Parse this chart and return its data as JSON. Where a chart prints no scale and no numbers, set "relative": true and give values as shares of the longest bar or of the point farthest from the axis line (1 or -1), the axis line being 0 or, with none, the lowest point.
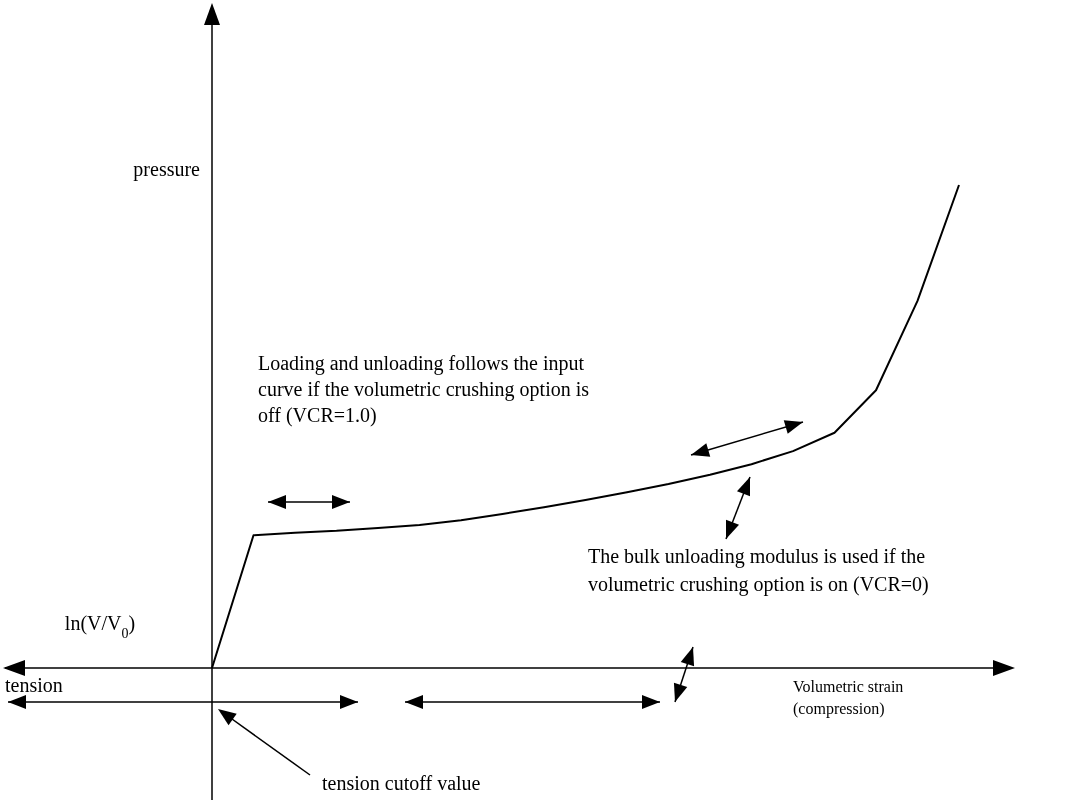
{
  "chart_data": {
    "type": "line",
    "relative": true,
    "color": "#000000",
    "categories": [
      null,
      null,
      null,
      null,
      null,
      null,
      null,
      null,
      null,
      null,
      null,
      null,
      null,
      null,
      null,
      null,
      null,
      null,
      null
    ],
    "values": [
      0,
      0.275,
      0.28,
      0.284,
      0.29,
      0.296,
      0.306,
      0.319,
      0.333,
      0.348,
      0.364,
      0.381,
      0.4,
      0.422,
      0.449,
      0.487,
      0.575,
      0.76,
      1
    ],
    "xlabel": "Volumetric strain (compression)",
    "ylabel": "pressure",
    "annotations": [
      "Loading and unloading follows the input curve if the volumetric crushing option is off (VCR=1.0)",
      "The bulk unloading modulus is used if the volumetric crushing option is on (VCR=0)",
      "tension cutoff value",
      "ln(V/V$_{0}$)",
      "tension"
    ]
  }
}
